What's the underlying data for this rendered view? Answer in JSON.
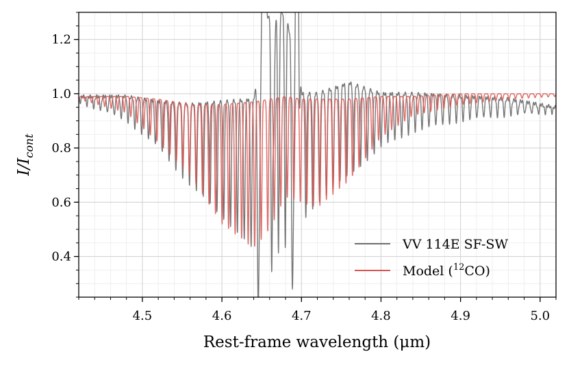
{
  "chart_data": {
    "type": "line",
    "title": "",
    "xlabel": "Rest-frame wavelength (μm)",
    "ylabel_main": "I/I",
    "ylabel_sub": "cont",
    "xlim": [
      4.42,
      5.02
    ],
    "ylim": [
      0.25,
      1.3
    ],
    "x_ticks": [
      4.5,
      4.6,
      4.7,
      4.8,
      4.9,
      5.0
    ],
    "x_tick_labels": [
      "4.5",
      "4.6",
      "4.7",
      "4.8",
      "4.9",
      "5.0"
    ],
    "y_ticks": [
      0.4,
      0.6,
      0.8,
      1.0,
      1.2
    ],
    "y_tick_labels": [
      "0.4",
      "0.6",
      "0.8",
      "1.0",
      "1.2"
    ],
    "grid": true,
    "legend_position": "lower-right",
    "series": [
      {
        "name": "VV 114E SF-SW",
        "color": "#6e6e6e",
        "envelope": {
          "x": [
            4.42,
            4.48,
            4.52,
            4.56,
            4.6,
            4.64,
            4.66,
            4.68,
            4.7,
            4.72,
            4.76,
            4.8,
            4.84,
            4.9,
            4.96,
            5.02
          ],
          "trough": [
            0.97,
            0.9,
            0.8,
            0.66,
            0.55,
            0.42,
            0.4,
            0.43,
            0.52,
            0.6,
            0.7,
            0.8,
            0.86,
            0.9,
            0.92,
            0.93
          ],
          "peak": [
            0.99,
            0.99,
            0.97,
            0.96,
            0.97,
            0.98,
            1.3,
            1.3,
            1.0,
            1.0,
            1.04,
            1.0,
            1.0,
            0.99,
            0.98,
            0.95
          ]
        },
        "emission_features": [
          4.653,
          4.695
        ],
        "absorption_features": [
          4.647,
          4.665,
          4.69
        ]
      },
      {
        "name": "Model (¹²CO)",
        "color": "#d9534f",
        "envelope": {
          "x": [
            4.42,
            4.48,
            4.52,
            4.56,
            4.6,
            4.64,
            4.66,
            4.68,
            4.7,
            4.72,
            4.76,
            4.8,
            4.84,
            4.9,
            4.96,
            5.02
          ],
          "trough": [
            0.98,
            0.93,
            0.82,
            0.7,
            0.52,
            0.43,
            0.5,
            0.62,
            0.6,
            0.58,
            0.68,
            0.84,
            0.92,
            0.96,
            0.98,
            0.99
          ],
          "peak": [
            0.99,
            0.99,
            0.98,
            0.96,
            0.96,
            0.97,
            0.98,
            0.99,
            0.98,
            0.98,
            0.98,
            0.99,
            0.99,
            1.0,
            1.0,
            1.0
          ]
        }
      }
    ],
    "legend": [
      {
        "label_main": "VV 114E SF-SW",
        "label_pre": "",
        "label_sup": "",
        "label_post": ""
      },
      {
        "label_main": "",
        "label_pre": "Model (",
        "label_sup": "12",
        "label_post": "CO)"
      }
    ]
  }
}
